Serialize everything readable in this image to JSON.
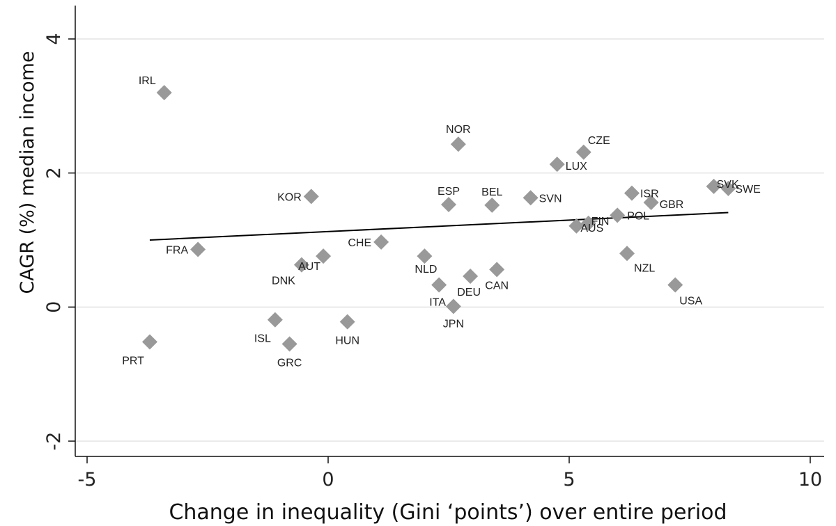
{
  "chart_data": {
    "type": "scatter",
    "title": "",
    "xlabel": "Change in inequality (Gini ‘points’) over entire period",
    "ylabel": "CAGR (%) median income",
    "xlim": [
      -5,
      10
    ],
    "ylim": [
      -2,
      4
    ],
    "xticks": [
      -5,
      0,
      5,
      10
    ],
    "xtick_labels": [
      "-5",
      "0",
      "5",
      "10"
    ],
    "yticks": [
      -2,
      0,
      2,
      4
    ],
    "ytick_labels": [
      "-2",
      "0",
      "2",
      "4"
    ],
    "grid": "horizontal",
    "marker_color": "#999999",
    "line_color": "#000000",
    "points": [
      {
        "label": "IRL",
        "x": -3.4,
        "y": 3.2
      },
      {
        "label": "NOR",
        "x": 2.7,
        "y": 2.43
      },
      {
        "label": "CZE",
        "x": 5.3,
        "y": 2.31
      },
      {
        "label": "LUX",
        "x": 4.75,
        "y": 2.13
      },
      {
        "label": "KOR",
        "x": -0.35,
        "y": 1.65
      },
      {
        "label": "ESP",
        "x": 2.5,
        "y": 1.53
      },
      {
        "label": "BEL",
        "x": 3.4,
        "y": 1.52
      },
      {
        "label": "SVN",
        "x": 4.2,
        "y": 1.63
      },
      {
        "label": "ISR",
        "x": 6.3,
        "y": 1.7
      },
      {
        "label": "GBR",
        "x": 6.7,
        "y": 1.56
      },
      {
        "label": "SVK",
        "x": 8.0,
        "y": 1.8
      },
      {
        "label": "SWE",
        "x": 8.3,
        "y": 1.77
      },
      {
        "label": "POL",
        "x": 6.0,
        "y": 1.37
      },
      {
        "label": "FIN",
        "x": 5.4,
        "y": 1.25
      },
      {
        "label": "AUS",
        "x": 5.15,
        "y": 1.21
      },
      {
        "label": "NZL",
        "x": 6.2,
        "y": 0.8
      },
      {
        "label": "USA",
        "x": 7.2,
        "y": 0.33
      },
      {
        "label": "FRA",
        "x": -2.7,
        "y": 0.86
      },
      {
        "label": "CHE",
        "x": 1.1,
        "y": 0.97
      },
      {
        "label": "NLD",
        "x": 2.0,
        "y": 0.76
      },
      {
        "label": "AUT",
        "x": -0.1,
        "y": 0.76
      },
      {
        "label": "DNK",
        "x": -0.55,
        "y": 0.63
      },
      {
        "label": "ITA",
        "x": 2.3,
        "y": 0.33
      },
      {
        "label": "DEU",
        "x": 2.95,
        "y": 0.46
      },
      {
        "label": "CAN",
        "x": 3.5,
        "y": 0.56
      },
      {
        "label": "JPN",
        "x": 2.6,
        "y": 0.01
      },
      {
        "label": "ISL",
        "x": -1.1,
        "y": -0.19
      },
      {
        "label": "HUN",
        "x": 0.4,
        "y": -0.22
      },
      {
        "label": "GRC",
        "x": -0.8,
        "y": -0.55
      },
      {
        "label": "PRT",
        "x": -3.7,
        "y": -0.52
      }
    ],
    "fit_line": {
      "x": [
        -3.7,
        8.3
      ],
      "y": [
        1.0,
        1.41
      ]
    }
  }
}
